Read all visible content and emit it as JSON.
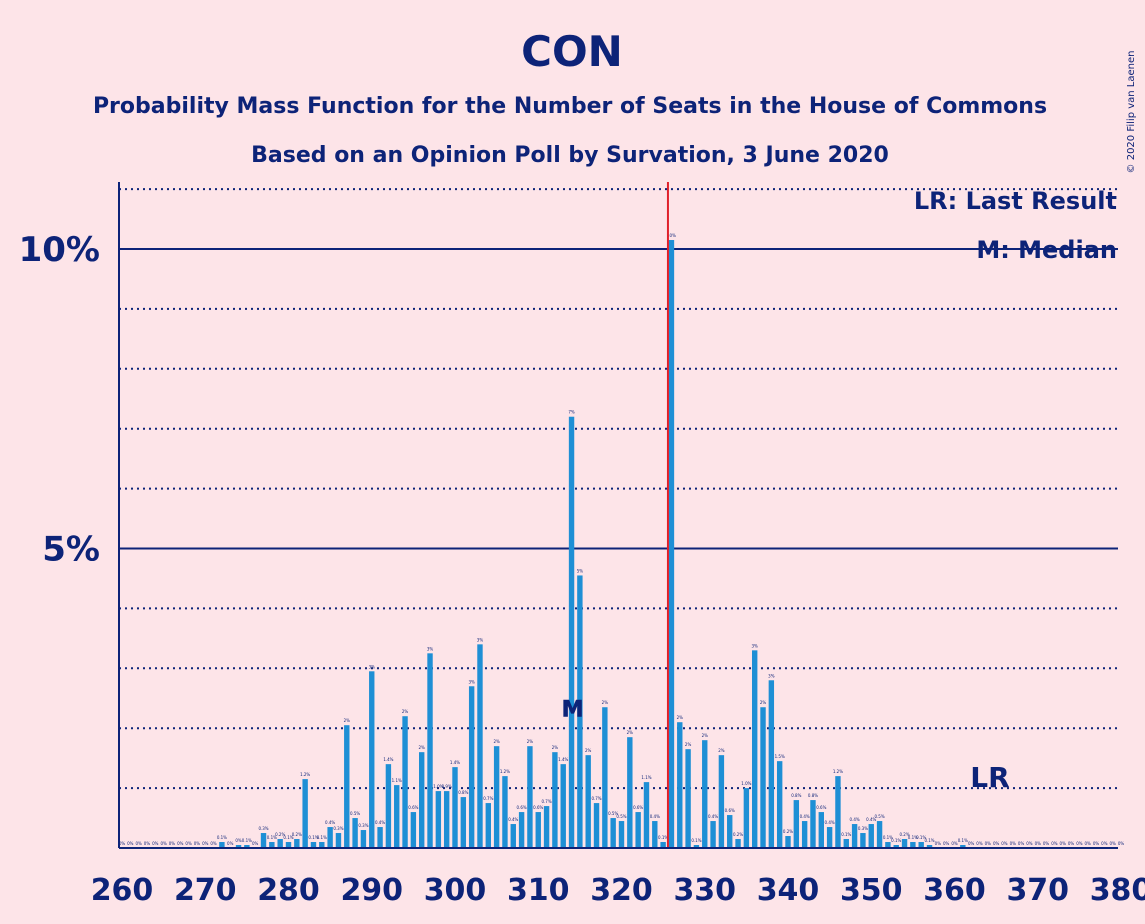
{
  "chart_data": {
    "type": "bar",
    "title": "CON",
    "subtitle": "Probability Mass Function for the Number of Seats in the House of Commons",
    "subtitle2": "Based on an Opinion Poll by Survation, 3 June 2020",
    "copyright": "© 2020 Filip van Laenen",
    "legend_lr": "LR: Last Result",
    "legend_m": "M: Median",
    "lr_label": "LR",
    "median_label": "M",
    "xlabel": "",
    "ylabel": "",
    "x_start": 260,
    "x_end": 380,
    "x_ticks": [
      260,
      270,
      280,
      290,
      300,
      310,
      320,
      330,
      340,
      350,
      360,
      370,
      380
    ],
    "y_ticks": [
      {
        "value": 5,
        "label": "5%"
      },
      {
        "value": 10,
        "label": "10%"
      }
    ],
    "ylim": [
      0,
      11.1
    ],
    "last_result": 326,
    "median": 314,
    "bar_color": "#1e8fd5",
    "line_color": "#0d2378",
    "lr_line_color": "#e0202a",
    "seats": [
      260,
      261,
      262,
      263,
      264,
      265,
      266,
      267,
      268,
      269,
      270,
      271,
      272,
      273,
      274,
      275,
      276,
      277,
      278,
      279,
      280,
      281,
      282,
      283,
      284,
      285,
      286,
      287,
      288,
      289,
      290,
      291,
      292,
      293,
      294,
      295,
      296,
      297,
      298,
      299,
      300,
      301,
      302,
      303,
      304,
      305,
      306,
      307,
      308,
      309,
      310,
      311,
      312,
      313,
      314,
      315,
      316,
      317,
      318,
      319,
      320,
      321,
      322,
      323,
      324,
      325,
      326,
      327,
      328,
      329,
      330,
      331,
      332,
      333,
      334,
      335,
      336,
      337,
      338,
      339,
      340,
      341,
      342,
      343,
      344,
      345,
      346,
      347,
      348,
      349,
      350,
      351,
      352,
      353,
      354,
      355,
      356,
      357,
      358,
      359,
      360,
      361,
      362,
      363,
      364,
      365,
      366,
      367,
      368,
      369,
      370,
      371,
      372,
      373,
      374,
      375,
      376,
      377,
      378,
      379,
      380
    ],
    "values": [
      0,
      0,
      0,
      0,
      0,
      0,
      0,
      0,
      0,
      0,
      0,
      0,
      0.1,
      0,
      0.05,
      0.05,
      0,
      0.25,
      0.1,
      0.15,
      0.1,
      0.15,
      1.15,
      0.1,
      0.1,
      0.35,
      0.25,
      2.05,
      0.5,
      0.3,
      2.95,
      0.35,
      1.4,
      1.05,
      2.2,
      0.6,
      1.6,
      3.25,
      0.95,
      0.95,
      1.35,
      0.85,
      2.7,
      3.4,
      0.75,
      1.7,
      1.2,
      0.4,
      0.6,
      1.7,
      0.6,
      0.7,
      1.6,
      1.4,
      7.2,
      4.55,
      1.55,
      0.75,
      2.35,
      0.5,
      0.45,
      1.85,
      0.6,
      1.1,
      0.45,
      0.1,
      10.15,
      2.1,
      1.65,
      0.05,
      1.8,
      0.45,
      1.55,
      0.55,
      0.15,
      1.0,
      3.3,
      2.35,
      2.8,
      1.45,
      0.2,
      0.8,
      0.45,
      0.8,
      0.6,
      0.35,
      1.2,
      0.15,
      0.4,
      0.25,
      0.4,
      0.45,
      0.1,
      0.05,
      0.15,
      0.1,
      0.1,
      0.05,
      0,
      0,
      0,
      0.05,
      0,
      0,
      0,
      0,
      0,
      0,
      0,
      0,
      0,
      0,
      0,
      0,
      0,
      0,
      0,
      0,
      0,
      0,
      0
    ],
    "value_labels": [
      "0%",
      "0%",
      "0%",
      "0%",
      "0%",
      "0%",
      "0%",
      "0%",
      "0%",
      "0%",
      "0%",
      "0%",
      "0.1%",
      "0%",
      "0%",
      "0.1%",
      "0%",
      "0.3%",
      "0.1%",
      "0.2%",
      "0.1%",
      "0.2%",
      "1.2%",
      "0.1%",
      "0.1%",
      "0.4%",
      "0.3%",
      "2%",
      "0.5%",
      "0.3%",
      "3%",
      "0.4%",
      "1.4%",
      "1.1%",
      "2%",
      "0.6%",
      "2%",
      "3%",
      "1.0%",
      "0.9%",
      "1.4%",
      "0.8%",
      "3%",
      "3%",
      "0.7%",
      "2%",
      "1.2%",
      "0.4%",
      "0.6%",
      "2%",
      "0.6%",
      "0.7%",
      "2%",
      "1.4%",
      "7%",
      "5%",
      "2%",
      "0.7%",
      "2%",
      "0.5%",
      "0.5%",
      "2%",
      "0.6%",
      "1.1%",
      "0.4%",
      "0.1%",
      "10%",
      "2%",
      "2%",
      "0.1%",
      "2%",
      "0.4%",
      "2%",
      "0.6%",
      "0.2%",
      "1.0%",
      "3%",
      "2%",
      "3%",
      "1.5%",
      "0.2%",
      "0.8%",
      "0.4%",
      "0.8%",
      "0.6%",
      "0.4%",
      "1.2%",
      "0.1%",
      "0.4%",
      "0.3%",
      "0.4%",
      "0.5%",
      "0.1%",
      "0.1%",
      "0.2%",
      "0.1%",
      "0.1%",
      "0.1%",
      "0%",
      "0%",
      "0%",
      "0.1%",
      "0%",
      "0%",
      "0%",
      "0%",
      "0%",
      "0%",
      "0%",
      "0%",
      "0%",
      "0%",
      "0%",
      "0%",
      "0%",
      "0%",
      "0%",
      "0%",
      "0%",
      "0%",
      "0%"
    ]
  }
}
